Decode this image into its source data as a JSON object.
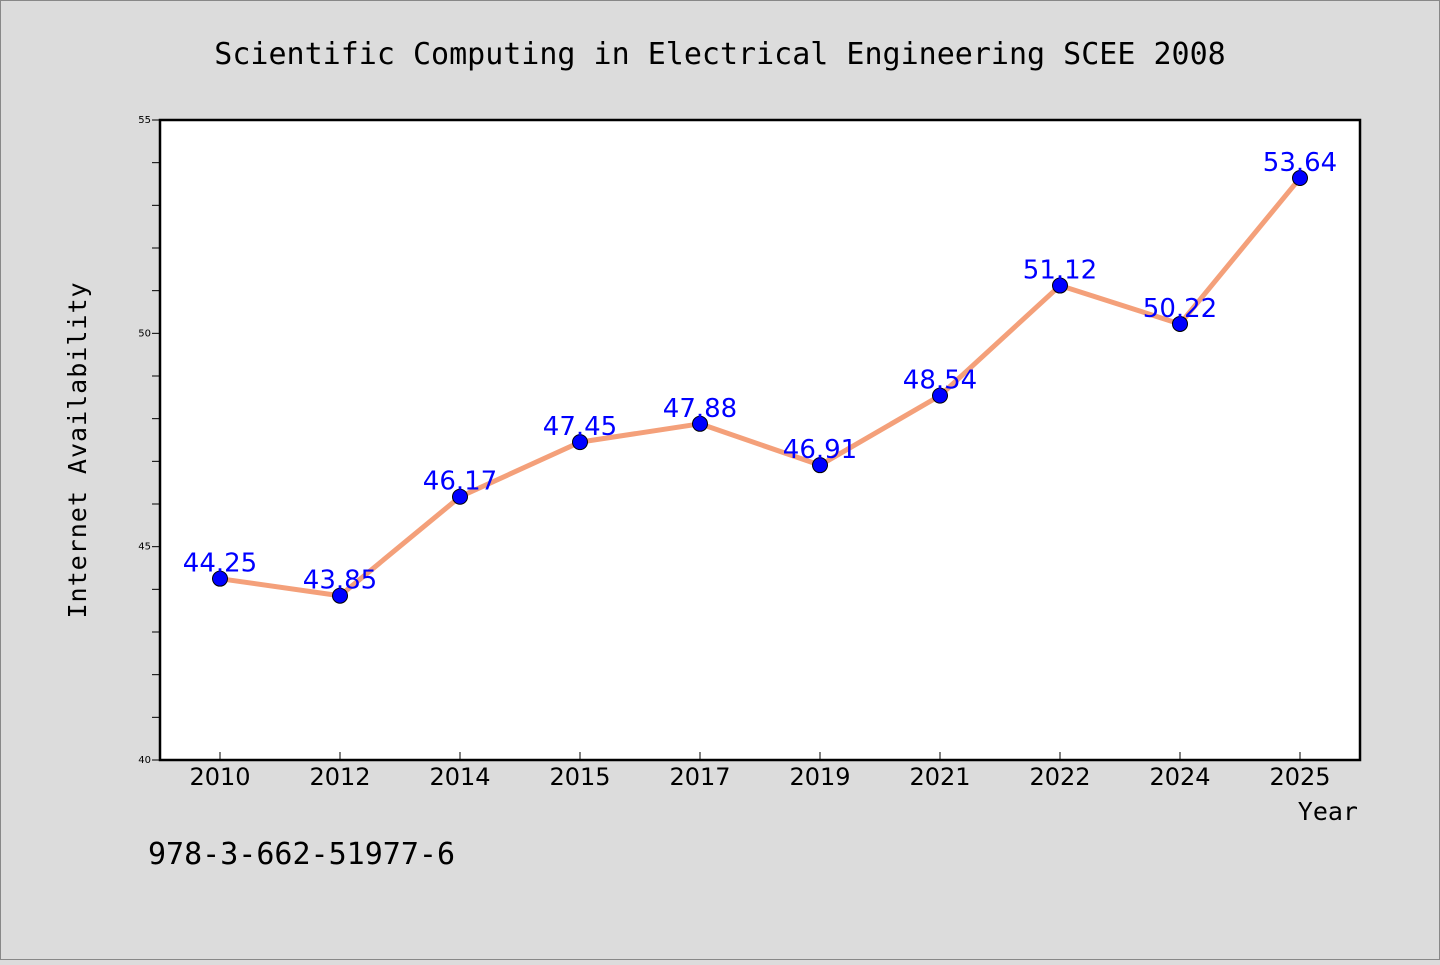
{
  "chart_data": {
    "type": "line",
    "title": "Scientific Computing in Electrical Engineering SCEE 2008",
    "xlabel": "Year",
    "ylabel": "Internet Availability",
    "categories": [
      "2010",
      "2012",
      "2014",
      "2015",
      "2017",
      "2019",
      "2021",
      "2022",
      "2024",
      "2025"
    ],
    "series": [
      {
        "values": [
          44.25,
          43.85,
          46.17,
          47.45,
          47.88,
          46.91,
          48.54,
          51.12,
          50.22,
          53.64
        ],
        "data_labels": [
          "44.25",
          "43.85",
          "46.17",
          "47.45",
          "47.88",
          "46.91",
          "48.54",
          "51.12",
          "50.22",
          "53.64"
        ]
      }
    ],
    "ylim": [
      40,
      55
    ],
    "yticks": [
      "40",
      "45",
      "50",
      "55"
    ],
    "grid": false,
    "legend": "none",
    "colors": {
      "line": "#f4a07a",
      "marker": "#0000ff",
      "label": "#0000ff"
    }
  },
  "footer": {
    "isbn": "978-3-662-51977-6"
  }
}
